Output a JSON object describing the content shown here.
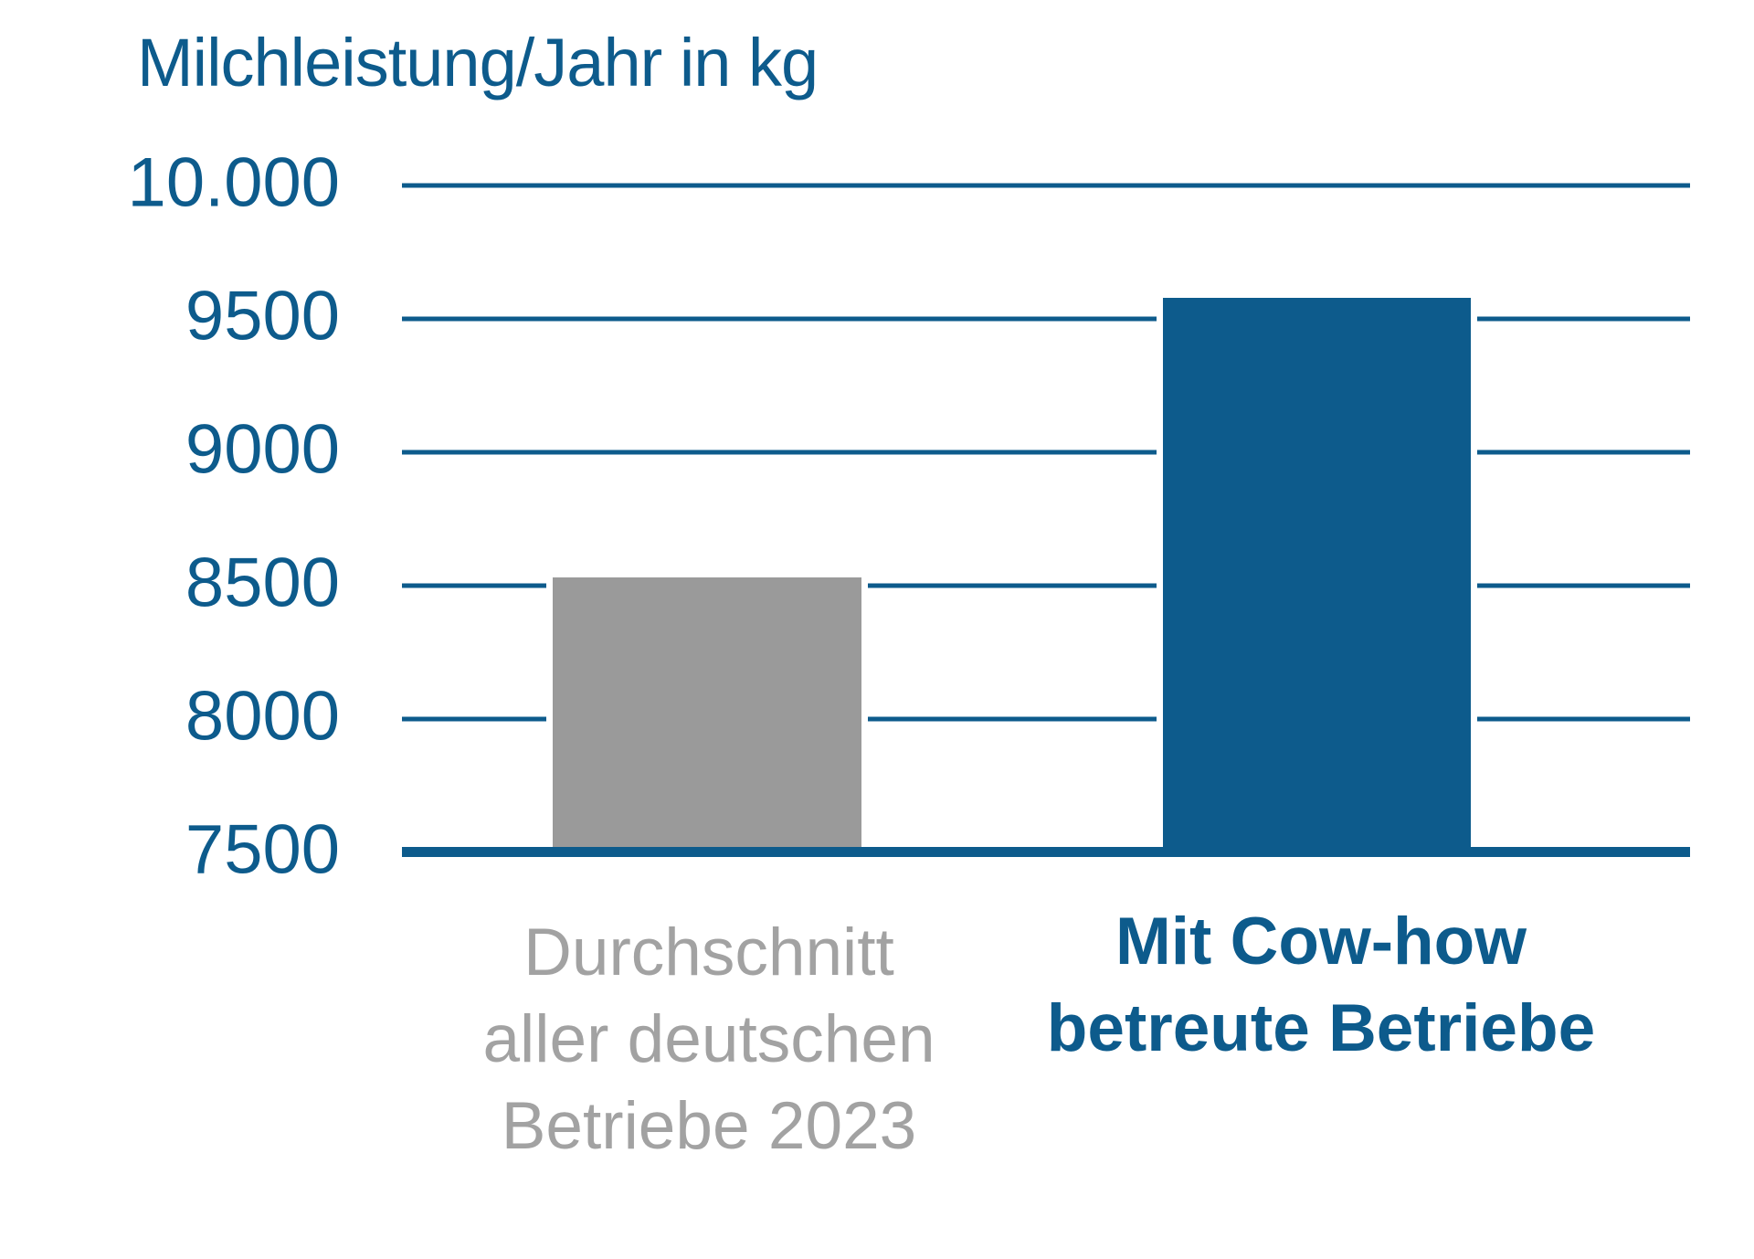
{
  "chart_data": {
    "type": "bar",
    "title": "Milchleistung/Jahr in kg",
    "categories": [
      "Durchschnitt aller deutschen Betriebe 2023",
      "Mit Cow-how betreute Betriebe"
    ],
    "category_lines": [
      [
        "Durchschnitt",
        "aller deutschen",
        "Betriebe 2023"
      ],
      [
        "Mit Cow-how",
        "betreute Betriebe"
      ]
    ],
    "values": [
      8530,
      9580
    ],
    "ylim": [
      7500,
      10000
    ],
    "ytick_step": 500,
    "ytick_labels": [
      "10.000",
      "9500",
      "9000",
      "8500",
      "8000",
      "7500"
    ],
    "grid": true,
    "legend": "none",
    "colors": {
      "accent_blue": "#0d5b8c",
      "bar_colors": [
        "#9a9a9a",
        "#0d5b8c"
      ],
      "label_colors": [
        "#a2a2a2",
        "#0d5b8c"
      ],
      "background": "#ffffff"
    }
  }
}
